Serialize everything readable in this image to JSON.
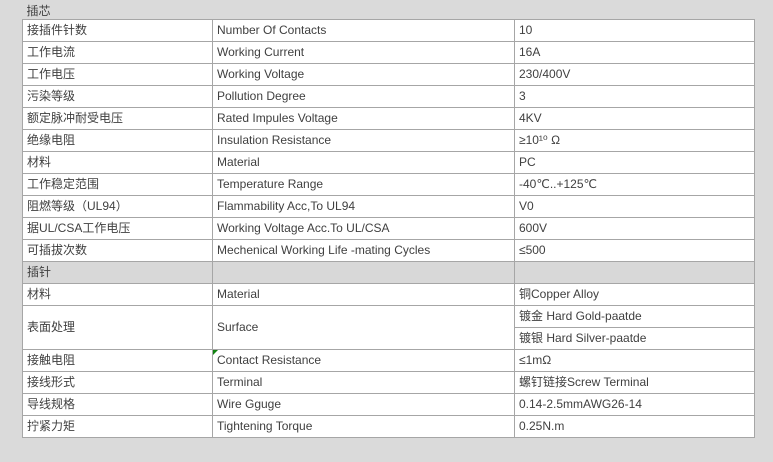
{
  "colors": {
    "page_background": "#dadada",
    "section_header_background": "#d8d8d8",
    "cell_background": "#ffffff",
    "border": "#a6a6a6",
    "text": "#3f3f3f",
    "comment_marker_green": "#118311"
  },
  "spec_table": {
    "sections": [
      {
        "title": "插芯",
        "rows": [
          {
            "cn": "接插件针数",
            "en": "Number Of Contacts",
            "value": "10"
          },
          {
            "cn": "工作电流",
            "en": "Working Current",
            "value": "16A"
          },
          {
            "cn": "工作电压",
            "en": "Working Voltage",
            "value": "230/400V"
          },
          {
            "cn": "污染等级",
            "en": "Pollution Degree",
            "value": "3"
          },
          {
            "cn": "额定脉冲耐受电压",
            "en": "Rated Impules Voltage",
            "value": "4KV"
          },
          {
            "cn": "绝缘电阻",
            "en": "Insulation Resistance",
            "value": "≥10¹⁰ Ω"
          },
          {
            "cn": "材料",
            "en": "Material",
            "value": "PC"
          },
          {
            "cn": "工作稳定范围",
            "en": "Temperature Range",
            "value": "-40℃..+125℃"
          },
          {
            "cn": "阻燃等级（UL94）",
            "en": "Flammability Acc,To UL94",
            "value": "V0"
          },
          {
            "cn": "据UL/CSA工作电压",
            "en": "Working Voltage Acc.To UL/CSA",
            "value": "600V"
          },
          {
            "cn": "可插拔次数",
            "en": "Mechenical Working Life -mating Cycles",
            "value": "≤500"
          }
        ]
      },
      {
        "title": "插针",
        "rows": [
          {
            "cn": "材料",
            "en": "Material",
            "value": "铜Copper Alloy"
          },
          {
            "cn": "表面处理",
            "en": "Surface",
            "value_lines": [
              "镀金 Hard Gold-paatde",
              "镀银 Hard Silver-paatde"
            ]
          },
          {
            "cn": "接触电阻",
            "en": "Contact Resistance",
            "value": "≤1mΩ",
            "comment_marker": true
          },
          {
            "cn": "接线形式",
            "en": "Terminal",
            "value": "螺钉链接Screw Terminal"
          },
          {
            "cn": "导线规格",
            "en": "Wire Gguge",
            "value": "0.14-2.5mmAWG26-14"
          },
          {
            "cn": "拧紧力矩",
            "en": "Tightening Torque",
            "value": "0.25N.m"
          }
        ]
      }
    ]
  }
}
